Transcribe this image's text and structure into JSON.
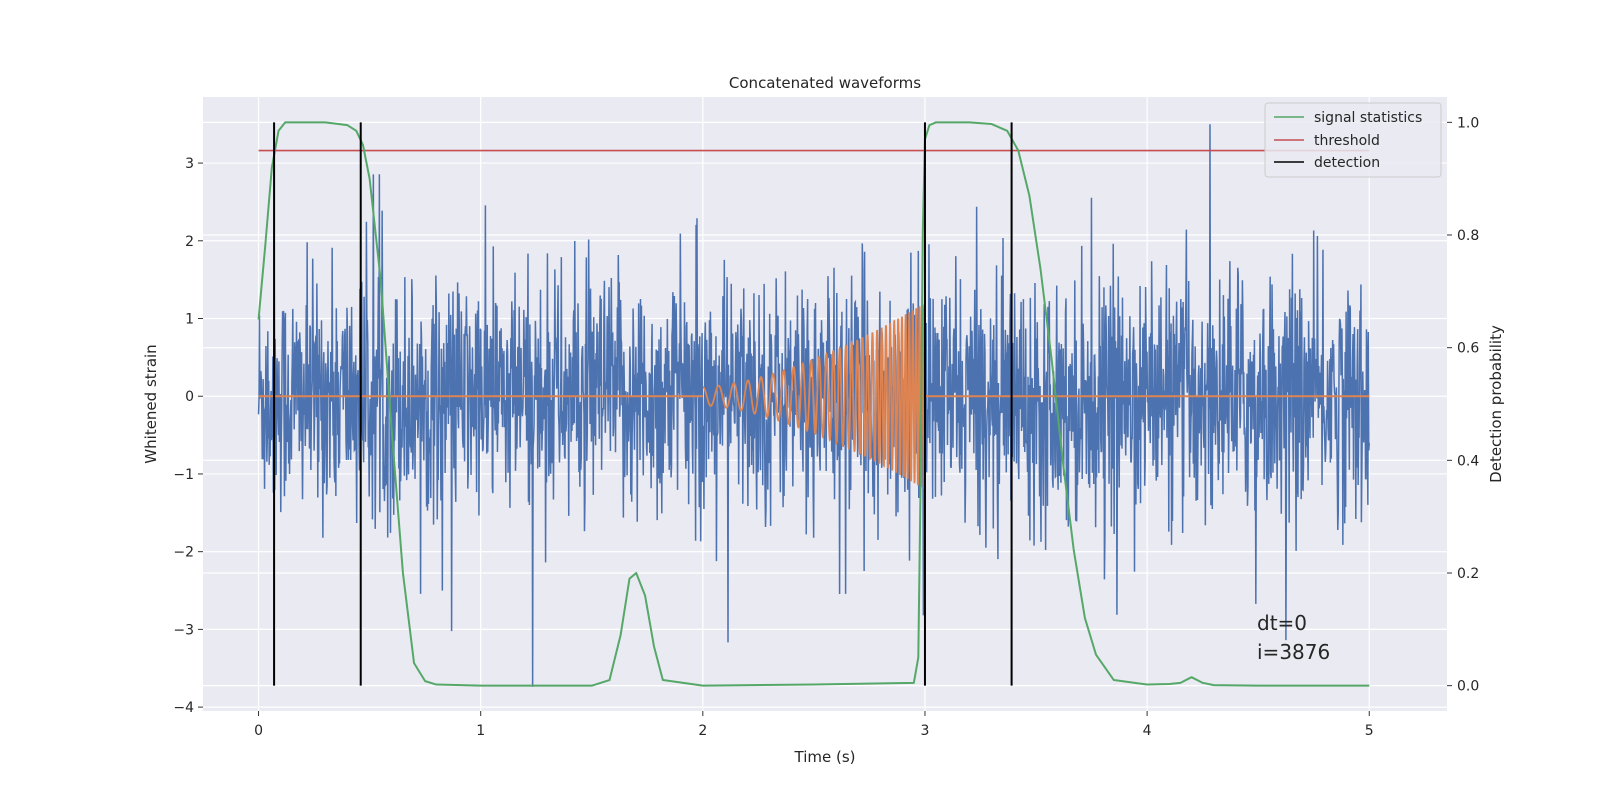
{
  "chart_data": {
    "type": "line",
    "title": "Concatenated waveforms",
    "xlabel": "Time (s)",
    "ylabel_left": "Whitened strain",
    "ylabel_right": "Detection probability",
    "xlim": [
      -0.25,
      5.35
    ],
    "ylim_left": [
      -4.05,
      3.85
    ],
    "ylim_right": [
      -0.045,
      1.045
    ],
    "x_ticks": [
      0,
      1,
      2,
      3,
      4,
      5
    ],
    "y_ticks_left": [
      -4,
      -3,
      -2,
      -1,
      0,
      1,
      2,
      3
    ],
    "y_ticks_right": [
      0.0,
      0.2,
      0.4,
      0.6,
      0.8,
      1.0
    ],
    "grid": true,
    "legend_position": "top-right",
    "series": [
      {
        "key": "strain",
        "color": "#4c72b0",
        "axis": "left",
        "noise_std": 0.75,
        "duration_s": 5.0,
        "samples": 2400
      },
      {
        "key": "template",
        "color": "#dd8452",
        "axis": "left",
        "chirp": {
          "t_start": 2.0,
          "t_end": 3.0,
          "amp_start": 0.12,
          "amp_end": 1.2,
          "freq_start_hz": 14,
          "freq_end_hz": 70
        },
        "baseline": 0
      },
      {
        "name": "signal statistics",
        "color": "#55a868",
        "axis": "right",
        "x": [
          0,
          0.03,
          0.06,
          0.09,
          0.12,
          0.15,
          0.2,
          0.3,
          0.4,
          0.44,
          0.47,
          0.5,
          0.55,
          0.6,
          0.65,
          0.7,
          0.75,
          0.8,
          1.0,
          1.5,
          1.58,
          1.63,
          1.67,
          1.7,
          1.74,
          1.78,
          1.82,
          2.0,
          2.5,
          2.95,
          2.97,
          2.98,
          2.99,
          3.0,
          3.02,
          3.05,
          3.1,
          3.2,
          3.3,
          3.37,
          3.42,
          3.47,
          3.52,
          3.57,
          3.62,
          3.67,
          3.72,
          3.77,
          3.85,
          4.0,
          4.1,
          4.15,
          4.2,
          4.25,
          4.3,
          4.5,
          5.0
        ],
        "y": [
          0.65,
          0.78,
          0.92,
          0.985,
          1.0,
          1.0,
          1.0,
          1.0,
          0.995,
          0.985,
          0.96,
          0.9,
          0.72,
          0.45,
          0.2,
          0.04,
          0.008,
          0.002,
          0.0,
          0.0,
          0.01,
          0.09,
          0.19,
          0.2,
          0.16,
          0.07,
          0.01,
          0.0,
          0.002,
          0.005,
          0.05,
          0.35,
          0.8,
          0.97,
          0.995,
          1.0,
          1.0,
          1.0,
          0.997,
          0.985,
          0.95,
          0.87,
          0.74,
          0.58,
          0.4,
          0.24,
          0.12,
          0.055,
          0.01,
          0.002,
          0.003,
          0.005,
          0.015,
          0.005,
          0.001,
          0.0,
          0.0
        ]
      },
      {
        "name": "threshold",
        "color": "#c44e52",
        "axis": "right",
        "y": 0.95,
        "x_range": [
          0,
          5
        ]
      },
      {
        "name": "detection",
        "color": "#000000",
        "axis": "right",
        "x": [
          0.07,
          0.46,
          3.0,
          3.39
        ],
        "y_range": [
          0,
          1
        ]
      }
    ],
    "annotations": [
      "dt=0",
      "i=3876"
    ]
  }
}
